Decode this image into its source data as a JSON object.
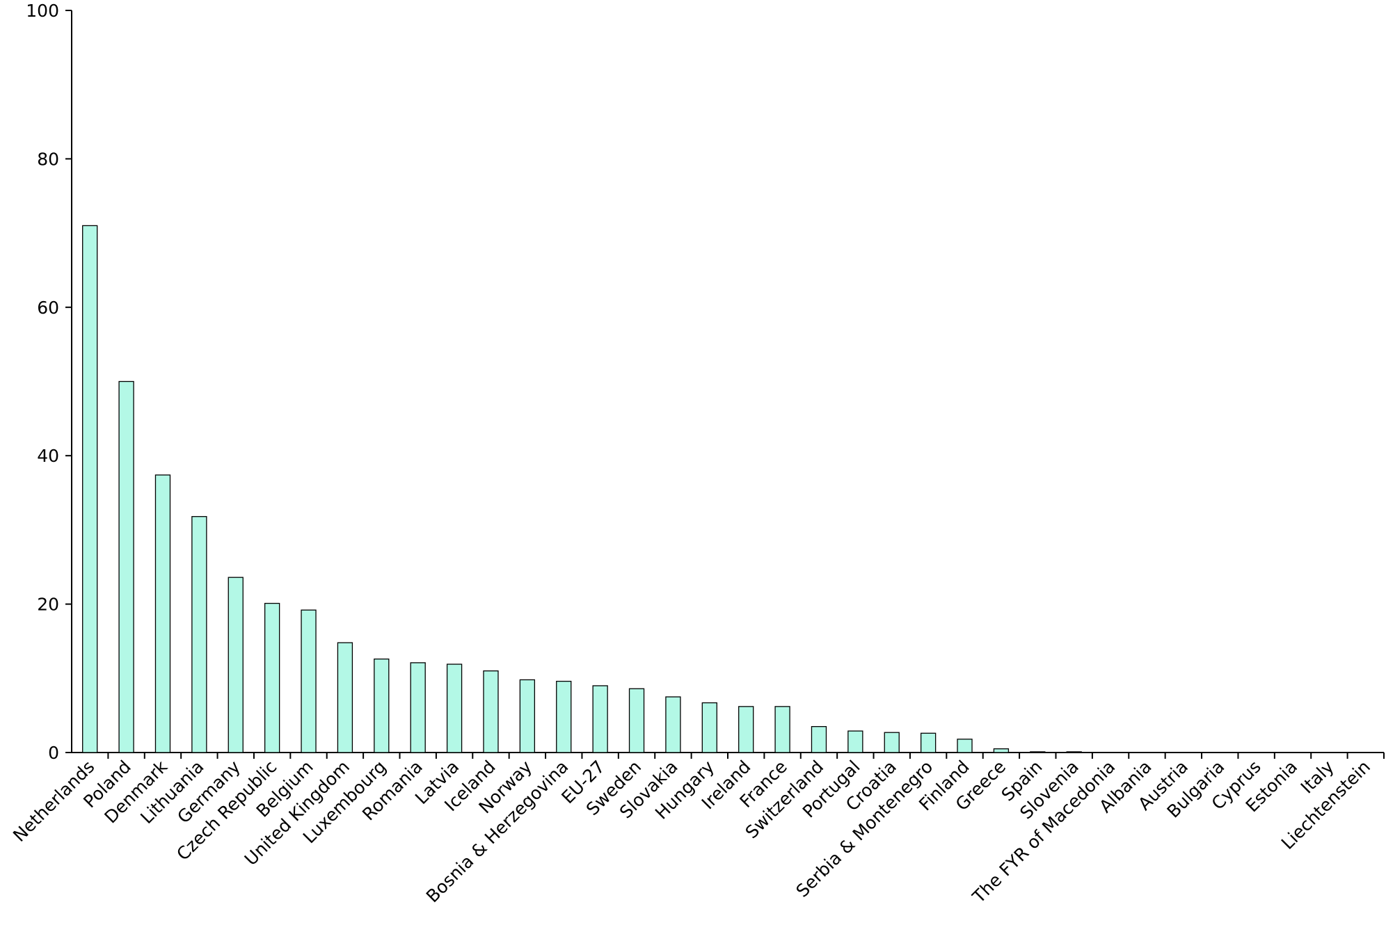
{
  "chart_data": {
    "type": "bar",
    "categories": [
      "Netherlands",
      "Poland",
      "Denmark",
      "Lithuania",
      "Germany",
      "Czech Republic",
      "Belgium",
      "United Kingdom",
      "Luxembourg",
      "Romania",
      "Latvia",
      "Iceland",
      "Norway",
      "Bosnia & Herzegovina",
      "EU-27",
      "Sweden",
      "Slovakia",
      "Hungary",
      "Ireland",
      "France",
      "Switzerland",
      "Portugal",
      "Croatia",
      "Serbia & Montenegro",
      "Finland",
      "Greece",
      "Spain",
      "Slovenia",
      "The FYR of Macedonia",
      "Albania",
      "Austria",
      "Bulgaria",
      "Cyprus",
      "Estonia",
      "Italy",
      "Liechtenstein"
    ],
    "values": [
      71,
      50,
      37.4,
      31.8,
      23.6,
      20.1,
      19.2,
      14.8,
      12.6,
      12.1,
      11.9,
      11.0,
      9.8,
      9.6,
      9.0,
      8.6,
      7.5,
      6.7,
      6.2,
      6.2,
      3.5,
      2.9,
      2.7,
      2.6,
      1.8,
      0.5,
      0.1,
      0.1,
      0,
      0,
      0,
      0,
      0,
      0,
      0,
      0
    ],
    "color": "#b3f8e6",
    "ylim": [
      0,
      100
    ],
    "yticks": [
      0,
      20,
      40,
      60,
      80,
      100
    ],
    "grid": false
  }
}
